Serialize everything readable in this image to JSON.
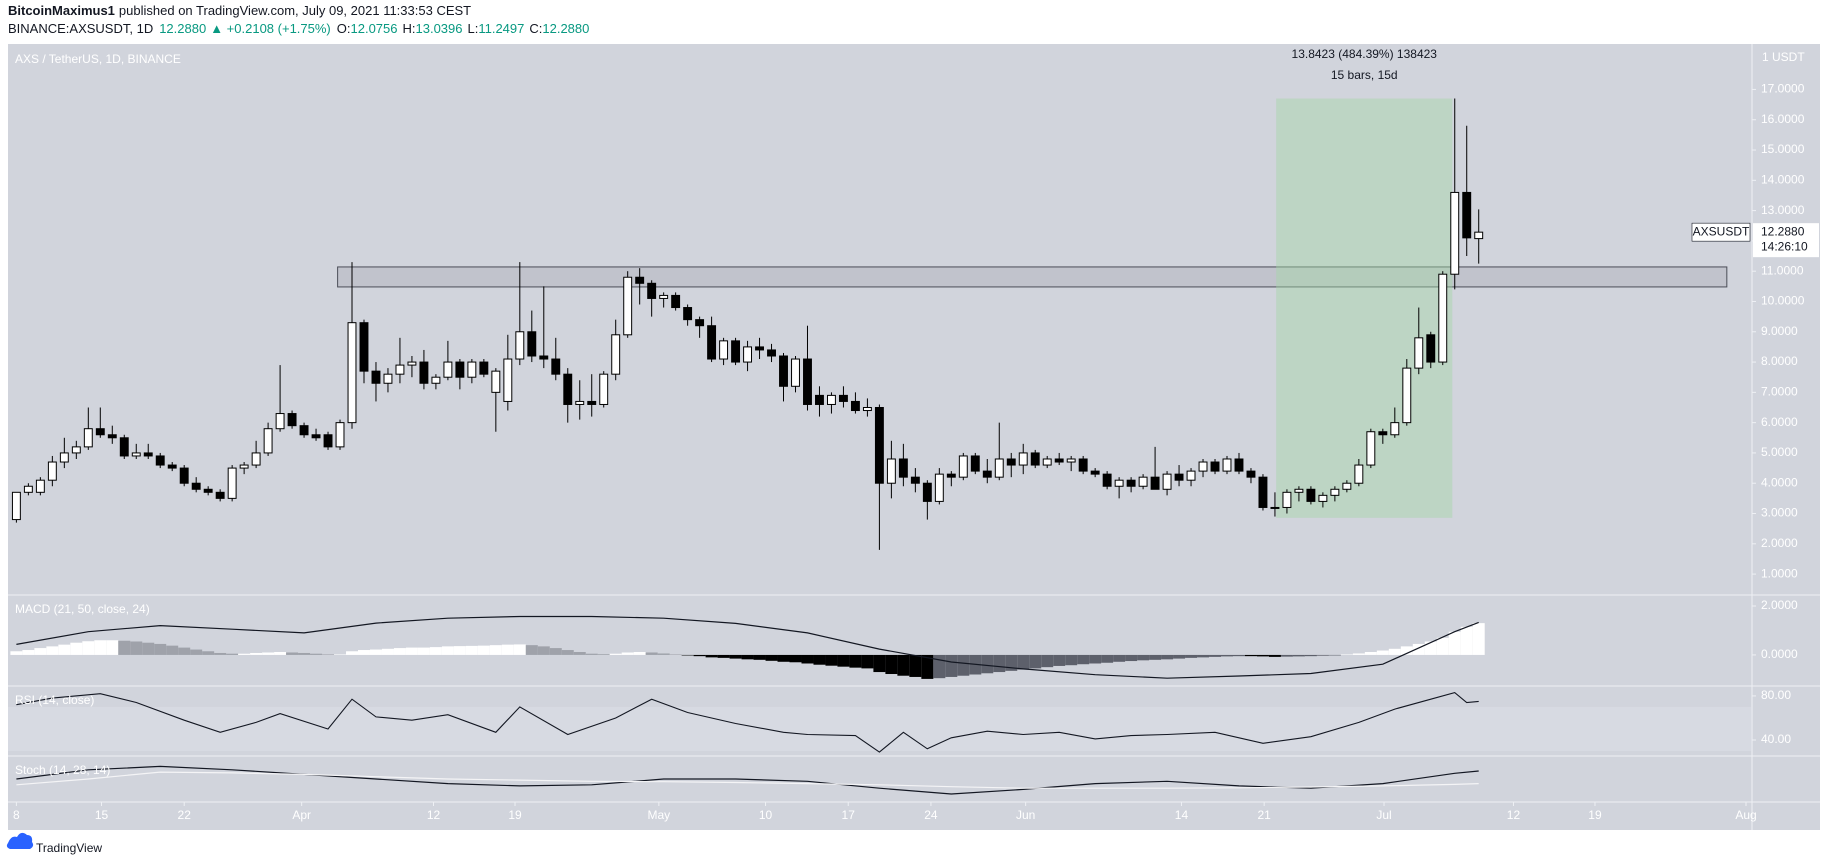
{
  "header": {
    "author": "BitcoinMaximus1",
    "published": "published on TradingView.com, July 09, 2021 11:33:53 CEST",
    "quote": {
      "symbol": "BINANCE:AXSUSDT, 1D",
      "price": "12.2880",
      "change": "▲ +0.2108 (+1.75%)",
      "fields": [
        {
          "key": "O:",
          "value": "12.0756"
        },
        {
          "key": "H:",
          "value": "13.0396"
        },
        {
          "key": "L:",
          "value": "11.2497"
        },
        {
          "key": "C:",
          "value": "12.2880"
        }
      ]
    }
  },
  "footer": {
    "brand": "TradingView"
  },
  "chart_data": {
    "type": "candlestick",
    "title": "AXS / TetherUS, 1D, BINANCE",
    "unit_label": "1 USDT",
    "up_color": "#ffffff",
    "down_color": "#000000",
    "border_color": "#000000",
    "grid": false,
    "xlim": [
      -0.7,
      144.8
    ],
    "xticks": [
      {
        "value": 0,
        "label": "8"
      },
      {
        "value": 7.1,
        "label": "15"
      },
      {
        "value": 14,
        "label": "22"
      },
      {
        "value": 23.8,
        "label": "Apr"
      },
      {
        "value": 34.8,
        "label": "12"
      },
      {
        "value": 41.6,
        "label": "19"
      },
      {
        "value": 53.6,
        "label": "May"
      },
      {
        "value": 62.5,
        "label": "10"
      },
      {
        "value": 69.4,
        "label": "17"
      },
      {
        "value": 76.3,
        "label": "24"
      },
      {
        "value": 84.2,
        "label": "Jun"
      },
      {
        "value": 97.2,
        "label": "14"
      },
      {
        "value": 104.1,
        "label": "21"
      },
      {
        "value": 114.1,
        "label": "Jul"
      },
      {
        "value": 124.9,
        "label": "12"
      },
      {
        "value": 131.7,
        "label": "19"
      },
      {
        "value": 144.3,
        "label": "Aug"
      }
    ],
    "ylim": [
      0.31,
      18.5
    ],
    "yticks": [
      {
        "value": 1,
        "label": "1.0000"
      },
      {
        "value": 2,
        "label": "2.0000"
      },
      {
        "value": 3,
        "label": "3.0000"
      },
      {
        "value": 4,
        "label": "4.0000"
      },
      {
        "value": 5,
        "label": "5.0000"
      },
      {
        "value": 6,
        "label": "6.0000"
      },
      {
        "value": 7,
        "label": "7.0000"
      },
      {
        "value": 8,
        "label": "8.0000"
      },
      {
        "value": 9,
        "label": "9.0000"
      },
      {
        "value": 10,
        "label": "10.0000"
      },
      {
        "value": 11,
        "label": "11.0000"
      },
      {
        "value": 12,
        "label": "12.0000"
      },
      {
        "value": 13,
        "label": "13.0000"
      },
      {
        "value": 14,
        "label": "14.0000"
      },
      {
        "value": 15,
        "label": "15.0000"
      },
      {
        "value": 16,
        "label": "16.0000"
      },
      {
        "value": 17,
        "label": "17.0000"
      }
    ],
    "ohlc": [
      [
        2.8,
        3.7,
        2.7,
        3.7
      ],
      [
        3.7,
        4.0,
        3.6,
        3.9
      ],
      [
        3.7,
        4.2,
        3.6,
        4.1
      ],
      [
        4.1,
        4.9,
        3.9,
        4.7
      ],
      [
        4.7,
        5.5,
        4.5,
        5.0
      ],
      [
        5.0,
        5.4,
        4.8,
        5.2
      ],
      [
        5.2,
        6.5,
        5.1,
        5.8
      ],
      [
        5.8,
        6.5,
        5.5,
        5.6
      ],
      [
        5.6,
        5.9,
        5.3,
        5.5
      ],
      [
        5.5,
        5.6,
        4.8,
        4.9
      ],
      [
        4.9,
        5.3,
        4.8,
        5.0
      ],
      [
        5.0,
        5.3,
        4.8,
        4.9
      ],
      [
        4.9,
        5.0,
        4.5,
        4.6
      ],
      [
        4.6,
        4.7,
        4.4,
        4.5
      ],
      [
        4.5,
        4.6,
        3.9,
        4.0
      ],
      [
        4.0,
        4.2,
        3.7,
        3.8
      ],
      [
        3.8,
        3.9,
        3.6,
        3.7
      ],
      [
        3.7,
        3.8,
        3.4,
        3.5
      ],
      [
        3.5,
        4.6,
        3.4,
        4.5
      ],
      [
        4.5,
        4.7,
        4.3,
        4.6
      ],
      [
        4.6,
        5.4,
        4.5,
        5.0
      ],
      [
        5.0,
        6.0,
        4.9,
        5.8
      ],
      [
        5.8,
        7.9,
        5.7,
        6.3
      ],
      [
        6.3,
        6.4,
        5.8,
        5.9
      ],
      [
        5.9,
        6.0,
        5.5,
        5.6
      ],
      [
        5.6,
        5.8,
        5.4,
        5.5
      ],
      [
        5.6,
        5.7,
        5.1,
        5.2
      ],
      [
        5.2,
        6.1,
        5.1,
        6.0
      ],
      [
        6.0,
        11.3,
        5.8,
        9.3
      ],
      [
        9.3,
        9.4,
        7.3,
        7.7
      ],
      [
        7.7,
        8.0,
        6.7,
        7.3
      ],
      [
        7.3,
        7.8,
        7.0,
        7.6
      ],
      [
        7.6,
        8.8,
        7.3,
        7.9
      ],
      [
        7.9,
        8.2,
        7.5,
        8.0
      ],
      [
        8.0,
        8.4,
        7.1,
        7.3
      ],
      [
        7.3,
        7.6,
        7.1,
        7.5
      ],
      [
        7.5,
        8.7,
        7.4,
        8.0
      ],
      [
        8.0,
        8.1,
        7.1,
        7.5
      ],
      [
        7.5,
        8.1,
        7.3,
        8.0
      ],
      [
        8.0,
        8.1,
        7.5,
        7.6
      ],
      [
        7.0,
        7.8,
        5.7,
        7.7
      ],
      [
        6.7,
        8.9,
        6.4,
        8.1
      ],
      [
        8.1,
        11.3,
        7.9,
        9.0
      ],
      [
        9.0,
        9.7,
        8.0,
        8.2
      ],
      [
        8.2,
        10.5,
        7.8,
        8.1
      ],
      [
        8.1,
        8.8,
        7.4,
        7.6
      ],
      [
        7.6,
        7.8,
        6.0,
        6.6
      ],
      [
        6.6,
        7.4,
        6.1,
        6.7
      ],
      [
        6.7,
        7.6,
        6.2,
        6.6
      ],
      [
        6.6,
        7.7,
        6.5,
        7.6
      ],
      [
        7.6,
        9.4,
        7.4,
        8.9
      ],
      [
        8.9,
        11.0,
        8.8,
        10.8
      ],
      [
        10.8,
        11.1,
        9.9,
        10.6
      ],
      [
        10.6,
        10.7,
        9.5,
        10.1
      ],
      [
        10.1,
        10.3,
        9.8,
        10.2
      ],
      [
        10.2,
        10.3,
        9.7,
        9.8
      ],
      [
        9.8,
        9.9,
        9.2,
        9.4
      ],
      [
        9.4,
        9.5,
        8.8,
        9.2
      ],
      [
        9.2,
        9.5,
        8.0,
        8.1
      ],
      [
        8.1,
        8.8,
        7.9,
        8.7
      ],
      [
        8.7,
        8.8,
        7.9,
        8.0
      ],
      [
        8.0,
        8.7,
        7.7,
        8.5
      ],
      [
        8.5,
        8.8,
        8.1,
        8.4
      ],
      [
        8.4,
        8.6,
        8.0,
        8.2
      ],
      [
        8.2,
        8.3,
        6.7,
        7.2
      ],
      [
        7.2,
        8.2,
        7.0,
        8.1
      ],
      [
        8.1,
        9.2,
        6.4,
        6.6
      ],
      [
        6.9,
        7.2,
        6.2,
        6.6
      ],
      [
        6.6,
        7.0,
        6.3,
        6.9
      ],
      [
        6.9,
        7.2,
        6.5,
        6.7
      ],
      [
        6.7,
        7.0,
        6.3,
        6.4
      ],
      [
        6.4,
        6.8,
        6.2,
        6.5
      ],
      [
        6.5,
        6.6,
        1.8,
        4.0
      ],
      [
        4.0,
        5.4,
        3.5,
        4.8
      ],
      [
        4.8,
        5.3,
        3.9,
        4.2
      ],
      [
        4.2,
        4.5,
        3.7,
        4.0
      ],
      [
        4.0,
        4.1,
        2.8,
        3.4
      ],
      [
        3.4,
        4.5,
        3.3,
        4.3
      ],
      [
        4.3,
        4.4,
        3.9,
        4.2
      ],
      [
        4.2,
        5.0,
        4.1,
        4.9
      ],
      [
        4.9,
        5.0,
        4.3,
        4.4
      ],
      [
        4.4,
        4.8,
        4.0,
        4.2
      ],
      [
        4.2,
        6.0,
        4.1,
        4.8
      ],
      [
        4.8,
        5.0,
        4.2,
        4.6
      ],
      [
        4.6,
        5.3,
        4.3,
        5.0
      ],
      [
        5.0,
        5.1,
        4.5,
        4.6
      ],
      [
        4.6,
        4.9,
        4.5,
        4.8
      ],
      [
        4.8,
        5.0,
        4.6,
        4.7
      ],
      [
        4.7,
        4.9,
        4.4,
        4.8
      ],
      [
        4.8,
        4.9,
        4.3,
        4.4
      ],
      [
        4.4,
        4.5,
        4.2,
        4.3
      ],
      [
        4.3,
        4.4,
        3.8,
        3.9
      ],
      [
        3.9,
        4.2,
        3.5,
        4.1
      ],
      [
        4.1,
        4.2,
        3.7,
        3.9
      ],
      [
        3.9,
        4.3,
        3.8,
        4.2
      ],
      [
        4.2,
        5.2,
        3.8,
        3.8
      ],
      [
        3.8,
        4.4,
        3.6,
        4.3
      ],
      [
        4.3,
        4.6,
        3.9,
        4.1
      ],
      [
        4.1,
        4.5,
        3.9,
        4.4
      ],
      [
        4.4,
        4.8,
        4.2,
        4.7
      ],
      [
        4.7,
        4.8,
        4.3,
        4.4
      ],
      [
        4.4,
        4.9,
        4.3,
        4.8
      ],
      [
        4.8,
        5.0,
        4.3,
        4.4
      ],
      [
        4.4,
        4.5,
        4.0,
        4.2
      ],
      [
        4.2,
        4.3,
        3.1,
        3.2
      ],
      [
        3.2,
        3.7,
        2.9,
        3.2
      ],
      [
        3.2,
        3.8,
        3.0,
        3.7
      ],
      [
        3.7,
        3.9,
        3.4,
        3.8
      ],
      [
        3.8,
        3.9,
        3.3,
        3.4
      ],
      [
        3.4,
        3.7,
        3.2,
        3.6
      ],
      [
        3.6,
        3.9,
        3.4,
        3.8
      ],
      [
        3.8,
        4.1,
        3.7,
        4.0
      ],
      [
        4.0,
        4.8,
        3.9,
        4.6
      ],
      [
        4.6,
        5.8,
        4.5,
        5.7
      ],
      [
        5.7,
        5.8,
        5.3,
        5.6
      ],
      [
        5.6,
        6.5,
        5.5,
        6.0
      ],
      [
        6.0,
        8.1,
        5.9,
        7.8
      ],
      [
        7.8,
        9.8,
        7.6,
        8.8
      ],
      [
        8.9,
        9.0,
        7.8,
        8.0
      ],
      [
        8.0,
        11.0,
        7.9,
        10.9
      ],
      [
        10.9,
        16.7,
        10.4,
        13.6
      ],
      [
        13.6,
        15.8,
        11.5,
        12.1
      ],
      [
        12.0756,
        13.0396,
        11.2497,
        12.288
      ]
    ],
    "zone": {
      "low": 10.48,
      "high": 11.14,
      "x_from": 26.8,
      "x_to": 142.7,
      "color": "#787b86"
    },
    "measure": {
      "low": 2.8577,
      "high": 16.7,
      "x_from": 105.1,
      "x_to": 119.8,
      "color": "#a5d6a7",
      "label": "13.8423 (484.39%) 138423",
      "sublabel": "15 bars, 15d"
    },
    "last_price": {
      "symbol": "AXSUSDT",
      "value": 12.288,
      "label": "12.2880",
      "countdown": "14:26:10"
    },
    "indicators": [
      {
        "type": "macd",
        "label": "MACD (21, 50, close, 24)",
        "ylim": [
          -1.27,
          2.45
        ],
        "yticks": [
          {
            "value": 2,
            "label": "2.0000"
          },
          {
            "value": 0,
            "label": "0.0000"
          }
        ],
        "colors": {
          "rising_above": "#ffffff",
          "falling_above": "#9fa2aa",
          "falling_below": "#000000",
          "rising_below": "#5d606b"
        },
        "histogram": [
          0.15,
          0.2,
          0.28,
          0.35,
          0.42,
          0.5,
          0.56,
          0.6,
          0.6,
          0.58,
          0.55,
          0.5,
          0.45,
          0.38,
          0.3,
          0.22,
          0.15,
          0.08,
          0.05,
          0.05,
          0.08,
          0.1,
          0.12,
          0.1,
          0.08,
          0.05,
          0.02,
          0.02,
          0.15,
          0.2,
          0.22,
          0.25,
          0.28,
          0.3,
          0.3,
          0.32,
          0.35,
          0.36,
          0.37,
          0.38,
          0.4,
          0.42,
          0.43,
          0.4,
          0.35,
          0.28,
          0.2,
          0.12,
          0.05,
          0.03,
          0.05,
          0.1,
          0.12,
          0.1,
          0.06,
          0.02,
          -0.02,
          -0.05,
          -0.1,
          -0.12,
          -0.15,
          -0.18,
          -0.2,
          -0.24,
          -0.28,
          -0.3,
          -0.35,
          -0.4,
          -0.44,
          -0.48,
          -0.52,
          -0.55,
          -0.7,
          -0.78,
          -0.85,
          -0.9,
          -0.98,
          -0.95,
          -0.9,
          -0.85,
          -0.8,
          -0.75,
          -0.7,
          -0.65,
          -0.6,
          -0.55,
          -0.5,
          -0.45,
          -0.42,
          -0.38,
          -0.35,
          -0.32,
          -0.28,
          -0.25,
          -0.22,
          -0.2,
          -0.18,
          -0.15,
          -0.12,
          -0.1,
          -0.08,
          -0.06,
          -0.05,
          -0.05,
          -0.06,
          -0.08,
          -0.07,
          -0.06,
          -0.05,
          -0.03,
          -0.01,
          0.02,
          0.06,
          0.12,
          0.18,
          0.25,
          0.35,
          0.45,
          0.55,
          0.7,
          0.95,
          1.15,
          1.3
        ],
        "line": {
          "color": "#131722",
          "x": [
            0,
            6,
            12,
            18,
            24,
            30,
            36,
            42,
            48,
            54,
            60,
            66,
            72,
            78,
            84,
            90,
            96,
            102,
            108,
            114,
            120,
            122
          ],
          "values": [
            0.43,
            0.95,
            1.2,
            1.05,
            0.9,
            1.3,
            1.5,
            1.57,
            1.57,
            1.5,
            1.29,
            0.9,
            0.24,
            -0.29,
            -0.57,
            -0.81,
            -0.95,
            -0.86,
            -0.76,
            -0.38,
            0.95,
            1.33
          ]
        }
      },
      {
        "type": "rsi",
        "label": "RSI (14, close)",
        "ylim": [
          25.5,
          89
        ],
        "yticks": [
          {
            "value": 80,
            "label": "80.00"
          },
          {
            "value": 40,
            "label": "40.00"
          }
        ],
        "band": [
          30,
          70
        ],
        "band_color": "#e0e3eb",
        "line": {
          "color": "#131722",
          "x": [
            0,
            3,
            7,
            10,
            14,
            17,
            20,
            22,
            26,
            28,
            30,
            33,
            36,
            40,
            42,
            46,
            50,
            53,
            56,
            60,
            64,
            66,
            70,
            72,
            74,
            76,
            78,
            81,
            84,
            87,
            90,
            93,
            96,
            100,
            104,
            108,
            112,
            115,
            118,
            120,
            121,
            122
          ],
          "values": [
            72,
            78,
            82,
            74,
            58,
            47,
            56,
            64,
            50,
            77,
            61,
            58,
            63,
            47,
            70,
            45,
            60,
            77,
            65,
            55,
            47,
            45,
            44,
            29,
            47,
            32,
            42,
            48,
            45,
            47,
            41,
            44,
            45,
            47,
            37,
            43,
            56,
            68,
            77,
            83,
            74,
            75
          ]
        }
      },
      {
        "type": "stoch",
        "label": "Stoch (14, 28, 14)",
        "ylim": [
          -10,
          110
        ],
        "series": [
          {
            "color": "#131722",
            "x": [
              0,
              6,
              12,
              18,
              24,
              30,
              36,
              42,
              48,
              54,
              60,
              66,
              72,
              78,
              84,
              90,
              96,
              102,
              108,
              114,
              120,
              122
            ],
            "values": [
              50,
              74,
              83,
              74,
              62,
              50,
              38,
              32,
              35,
              50,
              50,
              44,
              26,
              11,
              23,
              38,
              44,
              32,
              26,
              38,
              65,
              71
            ]
          },
          {
            "color": "#f4f4f6",
            "x": [
              0,
              6,
              12,
              18,
              24,
              30,
              36,
              42,
              48,
              54,
              60,
              66,
              72,
              78,
              84,
              90,
              96,
              102,
              108,
              114,
              120,
              122
            ],
            "values": [
              35,
              50,
              68,
              66,
              62,
              56,
              50,
              47,
              44,
              43,
              41,
              38,
              35,
              30,
              26,
              26,
              26,
              27,
              29,
              32,
              36,
              38
            ]
          }
        ]
      }
    ]
  }
}
